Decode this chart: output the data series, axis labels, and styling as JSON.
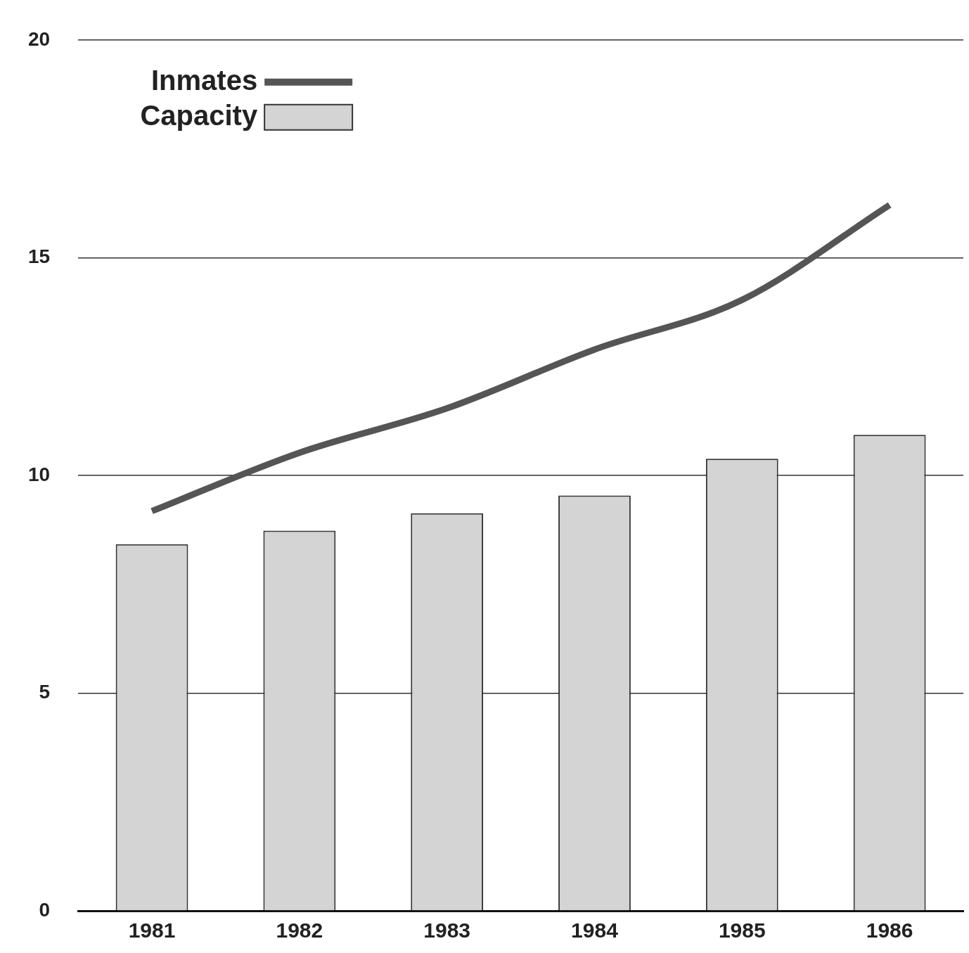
{
  "chart_data": {
    "type": "bar",
    "categories": [
      "1981",
      "1982",
      "1983",
      "1984",
      "1985",
      "1986"
    ],
    "series": [
      {
        "name": "Inmates",
        "type": "line",
        "color": "#555555",
        "values": [
          9.18,
          10.52,
          11.54,
          12.89,
          14.03,
          16.21
        ]
      },
      {
        "name": "Capacity",
        "color": "#d4d4d4",
        "values": [
          8.42,
          8.73,
          9.13,
          9.54,
          10.38,
          10.93
        ]
      }
    ],
    "ylim": [
      0,
      20
    ],
    "yticks": [
      0,
      5,
      10,
      15,
      20
    ],
    "grid": "y",
    "legend": "top left"
  }
}
